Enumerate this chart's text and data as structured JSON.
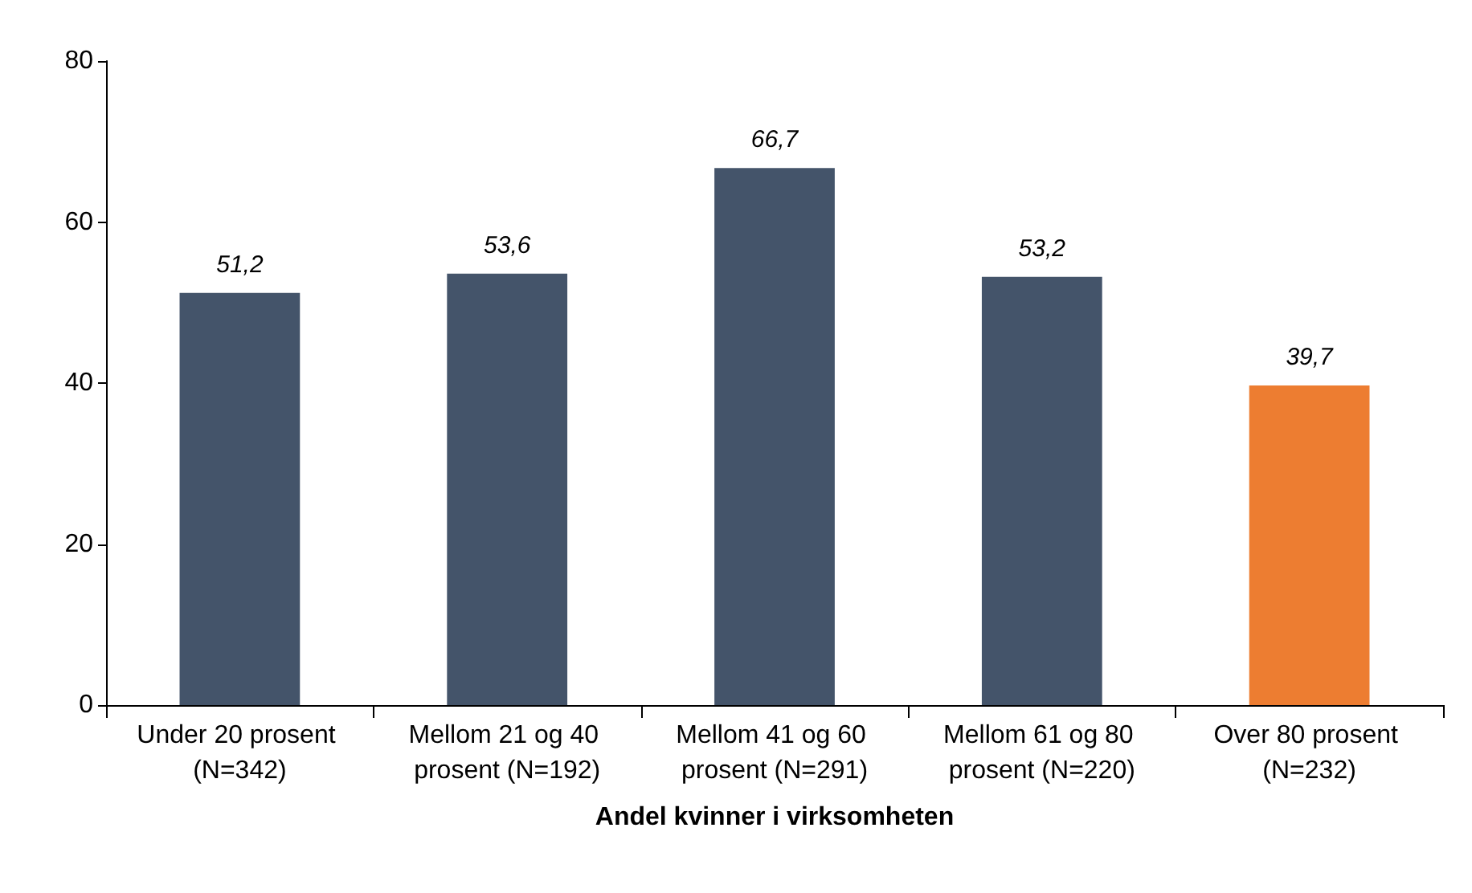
{
  "chart_data": {
    "type": "bar",
    "xlabel": "Andel kvinner i virksomheten",
    "categories": [
      "Under 20 prosent (N=342)",
      "Mellom 21 og 40 prosent (N=192)",
      "Mellom 41 og 60 prosent (N=291)",
      "Mellom 61 og 80 prosent (N=220)",
      "Over 80 prosent (N=232)"
    ],
    "values": [
      51.2,
      53.6,
      66.7,
      53.2,
      39.7
    ],
    "value_labels": [
      "51,2",
      "53,6",
      "66,7",
      "53,2",
      "39,7"
    ],
    "colors": [
      "#44546a",
      "#44546a",
      "#44546a",
      "#44546a",
      "#ed7d31"
    ],
    "ylim": [
      0,
      80
    ],
    "yticks": [
      0,
      20,
      40,
      60,
      80
    ],
    "grid": false
  }
}
